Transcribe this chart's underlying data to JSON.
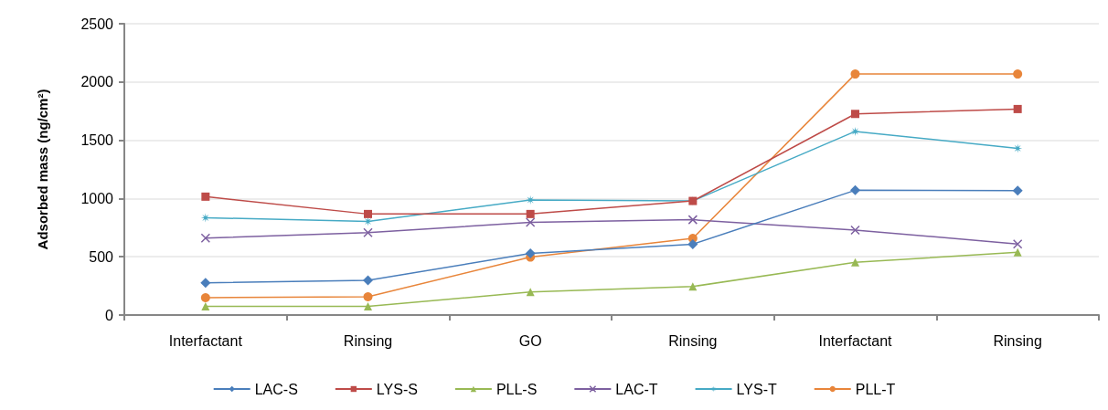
{
  "chart_data": {
    "type": "line",
    "ylabel": "Adsorbed mass (ng/cm²)",
    "categories": [
      "Interfactant",
      "Rinsing",
      "GO",
      "Rinsing",
      "Interfactant",
      "Rinsing"
    ],
    "ylim": [
      0,
      2500
    ],
    "yticks": [
      0,
      500,
      1000,
      1500,
      2000,
      2500
    ],
    "grid": "y",
    "legend": "bottom",
    "line_style": "solid",
    "series": [
      {
        "name": "LAC-S",
        "color": "#4a7ebb",
        "marker": "diamond",
        "values": [
          277,
          298,
          529,
          608,
          1071,
          1068
        ]
      },
      {
        "name": "LYS-S",
        "color": "#be4b48",
        "marker": "square",
        "values": [
          1016,
          867,
          867,
          979,
          1726,
          1768
        ]
      },
      {
        "name": "PLL-S",
        "color": "#98b954",
        "marker": "triangle",
        "values": [
          75,
          75,
          197,
          245,
          452,
          539
        ]
      },
      {
        "name": "LAC-T",
        "color": "#7d60a0",
        "marker": "cross",
        "values": [
          660,
          707,
          795,
          818,
          729,
          610
        ]
      },
      {
        "name": "LYS-T",
        "color": "#46aac5",
        "marker": "star",
        "values": [
          835,
          803,
          987,
          979,
          1576,
          1431
        ]
      },
      {
        "name": "PLL-T",
        "color": "#e8853a",
        "marker": "circle",
        "values": [
          149,
          157,
          497,
          658,
          2068,
          2068
        ]
      }
    ]
  }
}
